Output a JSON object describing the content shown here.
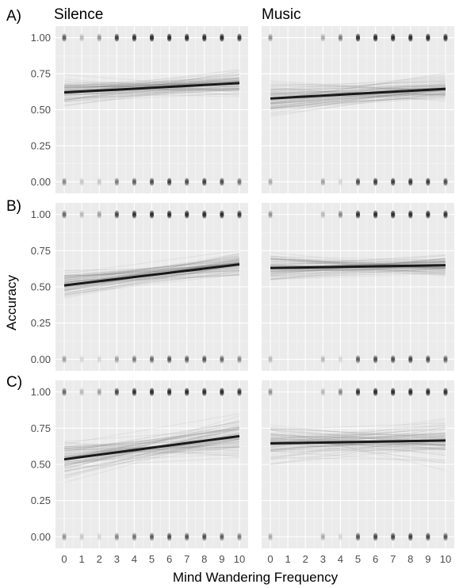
{
  "chart_data": {
    "type": "scatter",
    "xlabel": "Mind Wandering Frequency",
    "ylabel": "Accuracy",
    "xlim": [
      0,
      10
    ],
    "ylim": [
      0,
      1
    ],
    "x_ticks": [
      0,
      1,
      2,
      3,
      4,
      5,
      6,
      7,
      8,
      9,
      10
    ],
    "y_ticks": [
      0.0,
      0.25,
      0.5,
      0.75,
      1.0
    ],
    "y_tick_labels": [
      "0.00",
      "0.25",
      "0.50",
      "0.75",
      "1.00"
    ],
    "columns": [
      "Silence",
      "Music"
    ],
    "rows": [
      "A)",
      "B)",
      "C)"
    ],
    "grid": true,
    "colors": {
      "panel": "#ebebeb",
      "line": "#1a1a1a",
      "points": "#000000"
    },
    "panels": [
      {
        "row": "A)",
        "column": "Silence",
        "fit": {
          "y_at_0": 0.62,
          "y_at_10": 0.685
        },
        "band_halfwidth": {
          "at_0": 0.09,
          "at_10": 0.075
        },
        "points_at_1": {
          "x": [
            0,
            1,
            2,
            3,
            4,
            5,
            6,
            7,
            8,
            9,
            10
          ],
          "density": [
            0.6,
            0.2,
            0.35,
            0.8,
            0.9,
            0.95,
            0.95,
            0.95,
            0.95,
            0.95,
            0.85
          ]
        },
        "points_at_0": {
          "x": [
            0,
            1,
            2,
            3,
            4,
            5,
            6,
            7,
            8,
            9,
            10
          ],
          "density": [
            0.4,
            0.15,
            0.15,
            0.45,
            0.6,
            0.7,
            0.8,
            0.7,
            0.8,
            0.7,
            0.5
          ]
        }
      },
      {
        "row": "A)",
        "column": "Music",
        "fit": {
          "y_at_0": 0.578,
          "y_at_10": 0.645
        },
        "band_halfwidth": {
          "at_0": 0.12,
          "at_10": 0.08
        },
        "points_at_1": {
          "x": [
            0,
            3,
            4,
            5,
            6,
            7,
            8,
            9,
            10
          ],
          "density": [
            0.35,
            0.25,
            0.45,
            0.9,
            0.95,
            0.95,
            0.95,
            0.95,
            0.9
          ]
        },
        "points_at_0": {
          "x": [
            0,
            3,
            4,
            5,
            6,
            7,
            8,
            9,
            10
          ],
          "density": [
            0.25,
            0.3,
            0.1,
            0.7,
            0.8,
            0.8,
            0.85,
            0.8,
            0.7
          ]
        }
      },
      {
        "row": "B)",
        "column": "Silence",
        "fit": {
          "y_at_0": 0.51,
          "y_at_10": 0.655
        },
        "band_halfwidth": {
          "at_0": 0.1,
          "at_10": 0.08
        },
        "points_at_1": {
          "x": [
            0,
            1,
            2,
            3,
            4,
            5,
            6,
            7,
            8,
            9,
            10
          ],
          "density": [
            0.55,
            0.2,
            0.3,
            0.75,
            0.9,
            0.95,
            0.95,
            0.95,
            0.95,
            0.95,
            0.85
          ]
        },
        "points_at_0": {
          "x": [
            0,
            1,
            2,
            3,
            4,
            5,
            6,
            7,
            8,
            9,
            10
          ],
          "density": [
            0.3,
            0.1,
            0.1,
            0.3,
            0.45,
            0.55,
            0.65,
            0.6,
            0.65,
            0.55,
            0.4
          ]
        }
      },
      {
        "row": "B)",
        "column": "Music",
        "fit": {
          "y_at_0": 0.63,
          "y_at_10": 0.65
        },
        "band_halfwidth": {
          "at_0": 0.085,
          "at_10": 0.06
        },
        "points_at_1": {
          "x": [
            0,
            3,
            4,
            5,
            6,
            7,
            8,
            9,
            10
          ],
          "density": [
            0.35,
            0.2,
            0.4,
            0.9,
            0.95,
            0.95,
            0.95,
            0.95,
            0.9
          ]
        },
        "points_at_0": {
          "x": [
            0,
            3,
            4,
            5,
            6,
            7,
            8,
            9,
            10
          ],
          "density": [
            0.2,
            0.2,
            0.1,
            0.6,
            0.7,
            0.7,
            0.75,
            0.7,
            0.6
          ]
        }
      },
      {
        "row": "C)",
        "column": "Silence",
        "fit": {
          "y_at_0": 0.535,
          "y_at_10": 0.695
        },
        "band_halfwidth": {
          "at_0": 0.15,
          "at_10": 0.12
        },
        "points_at_1": {
          "x": [
            0,
            1,
            2,
            3,
            4,
            5,
            6,
            7,
            8,
            9,
            10
          ],
          "density": [
            0.55,
            0.2,
            0.3,
            0.75,
            0.9,
            0.95,
            0.95,
            0.95,
            0.95,
            0.95,
            0.85
          ]
        },
        "points_at_0": {
          "x": [
            0,
            1,
            2,
            3,
            4,
            5,
            6,
            7,
            8,
            9,
            10
          ],
          "density": [
            0.35,
            0.15,
            0.1,
            0.4,
            0.5,
            0.6,
            0.7,
            0.65,
            0.7,
            0.6,
            0.45
          ]
        }
      },
      {
        "row": "C)",
        "column": "Music",
        "fit": {
          "y_at_0": 0.645,
          "y_at_10": 0.665
        },
        "band_halfwidth": {
          "at_0": 0.13,
          "at_10": 0.13
        },
        "points_at_1": {
          "x": [
            0,
            3,
            4,
            5,
            6,
            7,
            8,
            9,
            10
          ],
          "density": [
            0.35,
            0.2,
            0.4,
            0.9,
            0.95,
            0.95,
            0.95,
            0.95,
            0.9
          ]
        },
        "points_at_0": {
          "x": [
            0,
            3,
            4,
            5,
            6,
            7,
            8,
            9,
            10
          ],
          "density": [
            0.25,
            0.25,
            0.1,
            0.65,
            0.75,
            0.75,
            0.8,
            0.75,
            0.65
          ]
        }
      }
    ]
  }
}
